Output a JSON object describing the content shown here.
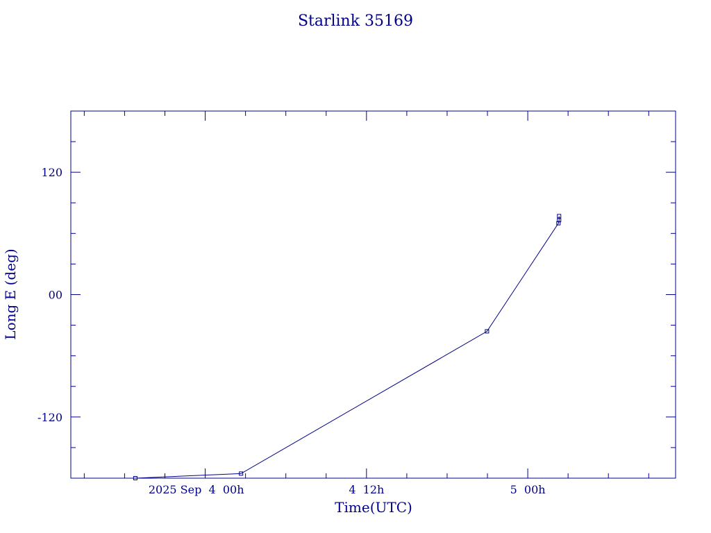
{
  "chart_data": {
    "type": "line",
    "title": "Starlink 35169",
    "xlabel": "Time(UTC)",
    "ylabel": "Long E (deg)",
    "x_tick_labels": [
      "2025 Sep  4  00h",
      "4  12h",
      "5  00h"
    ],
    "y_tick_labels": [
      "120",
      "00",
      "-120"
    ],
    "y_ticks": [
      120,
      0,
      -120
    ],
    "ylim": [
      -180,
      180
    ],
    "series": [
      {
        "points": [
          {
            "t": "2025-09-03 18:48",
            "lon": -180
          },
          {
            "t": "2025-09-04 02:40",
            "lon": -175.5
          },
          {
            "t": "2025-09-04 20:58",
            "lon": -36
          },
          {
            "t": "2025-09-05 02:17",
            "lon": 70
          },
          {
            "t": "2025-09-05 02:20",
            "lon": 73
          },
          {
            "t": "2025-09-05 02:20",
            "lon": 77
          }
        ]
      }
    ],
    "grid": false,
    "color": "#00008b"
  }
}
